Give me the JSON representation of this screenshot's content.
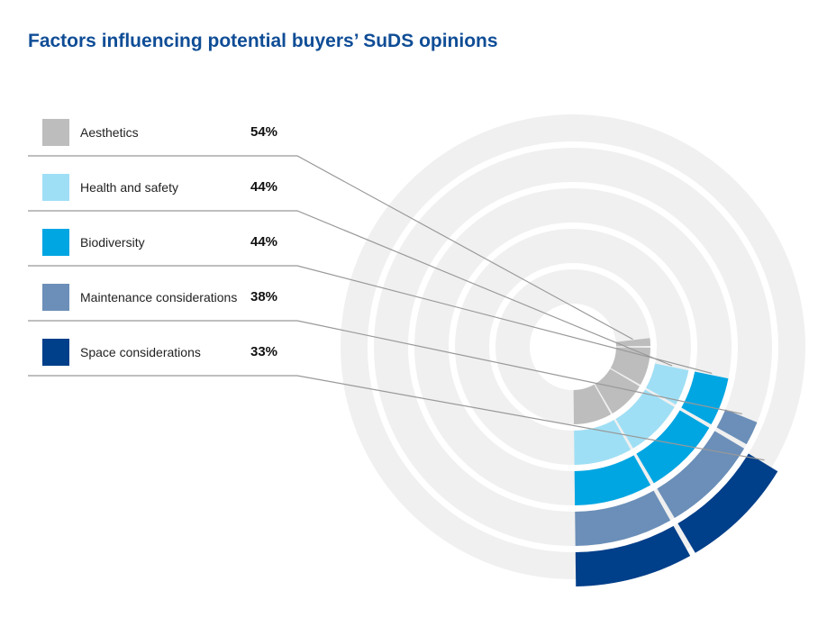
{
  "chart_data": {
    "type": "radial-bar",
    "title": "Factors influencing potential buyers’ SuDS opinions",
    "unit": "%",
    "series": [
      {
        "name": "Aesthetics",
        "value": 54,
        "label": "54%",
        "color": "#bdbdbd"
      },
      {
        "name": "Health and safety",
        "value": 44,
        "label": "44%",
        "color": "#9fdff5"
      },
      {
        "name": "Biodiversity",
        "value": 44,
        "label": "44%",
        "color": "#00a6e2"
      },
      {
        "name": "Maintenance considerations",
        "value": 38,
        "label": "38%",
        "color": "#6b8fb8"
      },
      {
        "name": "Space considerations",
        "value": 33,
        "label": "33%",
        "color": "#003f8a"
      }
    ],
    "track_color": "#f0f0f0"
  }
}
